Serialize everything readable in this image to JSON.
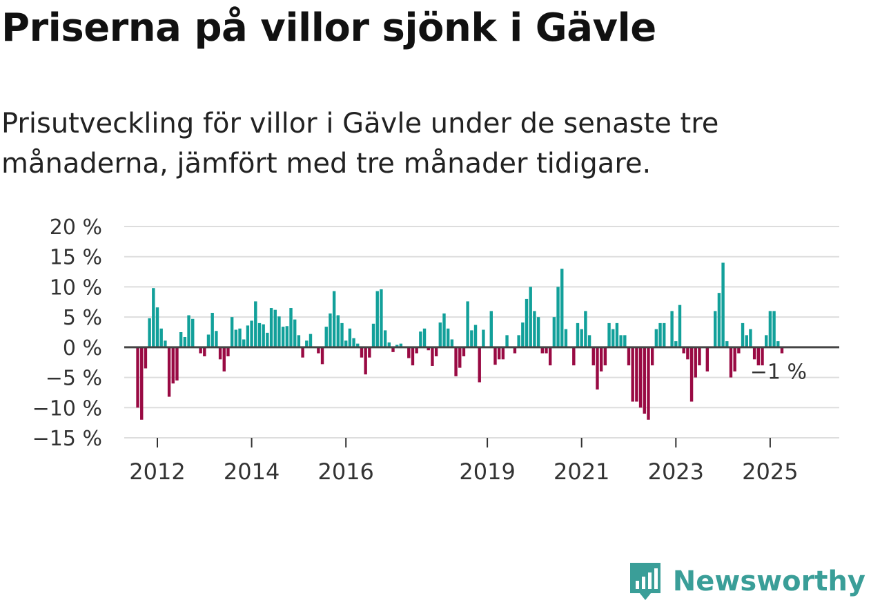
{
  "header": {
    "title": "Priserna på villor sjönk i Gävle",
    "subtitle": "Prisutveckling för villor i Gävle under de senaste tre månaderna, jämfört med tre månader tidigare."
  },
  "brand": {
    "name": "Newsworthy",
    "icon": "bar-chart-bubble-icon",
    "color": "#3a9e98"
  },
  "colors": {
    "positive": "#12a09a",
    "negative": "#990a43",
    "grid": "#dddddd",
    "zero": "#444444"
  },
  "chart_data": {
    "type": "bar",
    "title": "Priserna på villor sjönk i Gävle",
    "xlabel": "",
    "ylabel": "",
    "ylim": [
      -15,
      20
    ],
    "y_ticks": [
      20,
      15,
      10,
      5,
      0,
      -5,
      -10,
      -15
    ],
    "y_tick_labels": [
      "20 %",
      "15 %",
      "10 %",
      "5 %",
      "0 %",
      "−5 %",
      "−10 %",
      "−15 %"
    ],
    "x_ticks": [
      2012,
      2014,
      2016,
      2019,
      2021,
      2023,
      2025
    ],
    "x_tick_labels": [
      "2012",
      "2014",
      "2016",
      "2019",
      "2021",
      "2023",
      "2025"
    ],
    "start": "2011-08",
    "frequency": "monthly",
    "values": [
      -10,
      -12,
      -3.5,
      4.8,
      9.8,
      6.6,
      3.1,
      1.1,
      -8.2,
      -6,
      -5.5,
      2.5,
      1.7,
      5.3,
      4.7,
      0,
      -1,
      -1.5,
      2.1,
      5.7,
      2.7,
      -2,
      -4,
      -1.5,
      5,
      2.9,
      3.1,
      1.3,
      3.6,
      4.4,
      7.6,
      4,
      3.8,
      2.4,
      6.5,
      6.2,
      5.1,
      3.4,
      3.5,
      6.5,
      4.6,
      2,
      -1.7,
      1.1,
      2.2,
      0,
      -1,
      -2.8,
      3.4,
      5.6,
      9.3,
      5.3,
      4,
      1.1,
      3.1,
      1.5,
      0.6,
      -1.7,
      -4.5,
      -1.7,
      3.9,
      9.3,
      9.6,
      2.8,
      0.8,
      -0.8,
      0.4,
      0.6,
      0,
      -1.8,
      -3,
      -1,
      2.6,
      3.1,
      -0.5,
      -3.1,
      -1.5,
      4.1,
      5.6,
      3.1,
      1.3,
      -4.8,
      -3.4,
      -1.5,
      7.6,
      2.8,
      3.7,
      -5.8,
      2.9,
      0,
      6,
      -2.9,
      -2,
      -2,
      2,
      0,
      -1,
      2,
      4.1,
      8,
      10,
      6,
      5,
      -1,
      -1,
      -3,
      5,
      10,
      13,
      3,
      0,
      -3,
      4,
      3,
      6,
      2,
      -3,
      -7,
      -4,
      -3,
      4,
      3,
      4,
      2,
      2,
      -3,
      -9,
      -9,
      -10,
      -11,
      -12,
      -3,
      3,
      4,
      4,
      0,
      6,
      1,
      7,
      -1,
      -2,
      -9,
      -5,
      -3,
      0,
      -4,
      0,
      6,
      9,
      14,
      1,
      -5,
      -4,
      -1,
      4,
      2,
      3,
      -2,
      -3,
      -3,
      2,
      6,
      6,
      1,
      -1
    ],
    "annotation": {
      "label": "−1 %",
      "target": "last"
    }
  }
}
